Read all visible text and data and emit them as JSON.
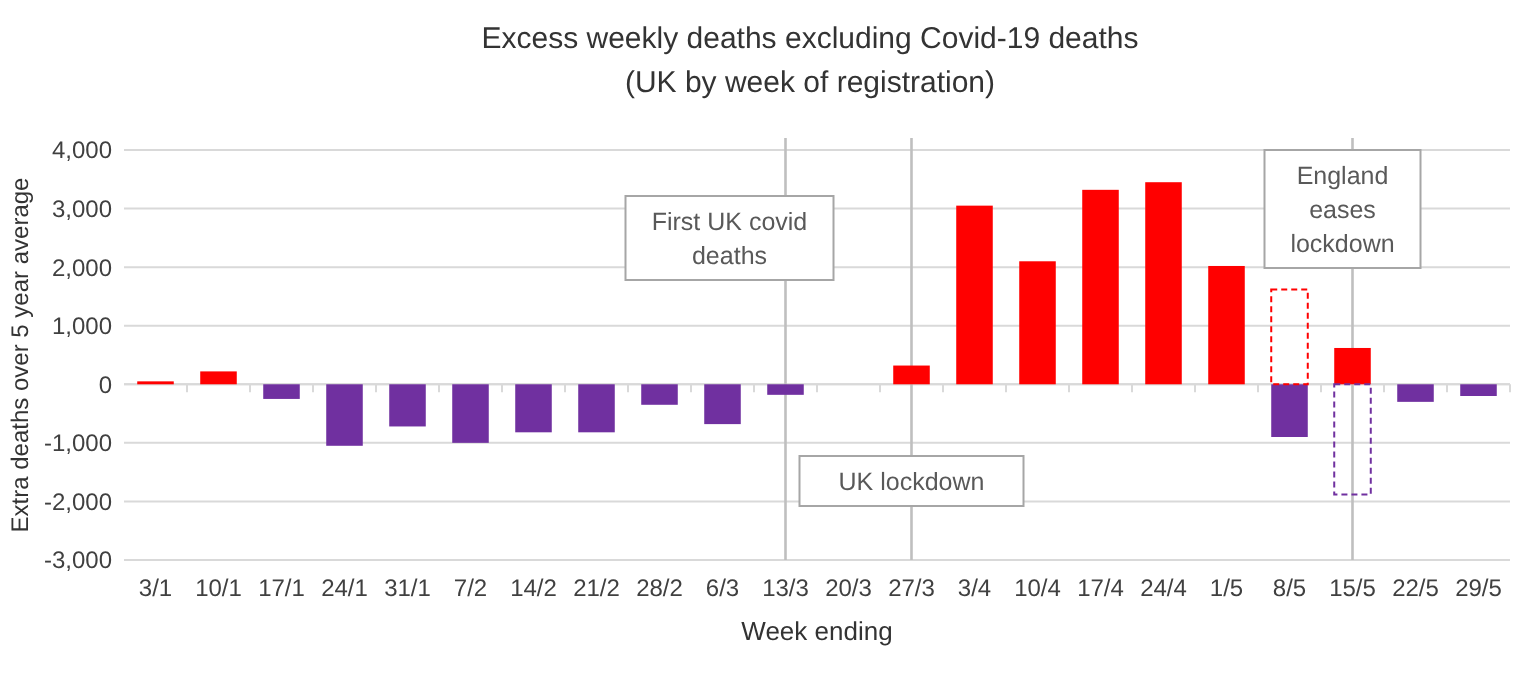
{
  "chart_data": {
    "type": "bar",
    "title": "Excess weekly deaths excluding Covid-19 deaths",
    "subtitle": "(UK by week of registration)",
    "xlabel": "Week ending",
    "ylabel": "Extra deaths over 5 year average",
    "categories": [
      "3/1",
      "10/1",
      "17/1",
      "24/1",
      "31/1",
      "7/2",
      "14/2",
      "21/2",
      "28/2",
      "6/3",
      "13/3",
      "20/3",
      "27/3",
      "3/4",
      "10/4",
      "17/4",
      "24/4",
      "1/5",
      "8/5",
      "15/5",
      "22/5",
      "29/5"
    ],
    "stacked": true,
    "series": [
      {
        "colors": [
          "#ff0000",
          "#ff0000",
          "#7030a0",
          "#7030a0",
          "#7030a0",
          "#7030a0",
          "#7030a0",
          "#7030a0",
          "#7030a0",
          "#7030a0",
          "#7030a0",
          "#ff0000",
          "#ff0000",
          "#ff0000",
          "#ff0000",
          "#ff0000",
          "#ff0000",
          "#ff0000",
          "#7030a0",
          "#ff0000",
          "#7030a0",
          "#7030a0"
        ],
        "values": [
          50,
          220,
          -250,
          -1050,
          -720,
          -1000,
          -820,
          -820,
          -350,
          -680,
          -180,
          null,
          320,
          3050,
          2100,
          3320,
          3450,
          2020,
          -900,
          620,
          -300,
          -200
        ]
      },
      {
        "line_style": "dashed",
        "colors": [
          "#ff0000",
          "#ff0000",
          "#ff0000",
          "#ff0000",
          "#ff0000",
          "#ff0000",
          "#ff0000",
          "#ff0000",
          "#ff0000",
          "#ff0000",
          "#ff0000",
          "#ff0000",
          "#ff0000",
          "#ff0000",
          "#ff0000",
          "#ff0000",
          "#ff0000",
          "#ff0000",
          "#ff0000",
          "#7030a0",
          "#7030a0",
          "#7030a0"
        ],
        "values": [
          null,
          null,
          null,
          null,
          null,
          null,
          null,
          null,
          null,
          null,
          null,
          null,
          null,
          null,
          null,
          null,
          null,
          null,
          1620,
          -1880,
          null,
          null
        ]
      }
    ],
    "ylim": [
      -3000,
      4000
    ],
    "yticks": [
      {
        "value": -3000,
        "label": "-3,000"
      },
      {
        "value": -2000,
        "label": "-2,000"
      },
      {
        "value": -1000,
        "label": "-1,000"
      },
      0,
      {
        "value": 1000,
        "label": "1,000"
      },
      {
        "value": 2000,
        "label": "2,000"
      },
      {
        "value": 3000,
        "label": "3,000"
      },
      {
        "value": 4000,
        "label": "4,000"
      }
    ],
    "grid": "y",
    "ref_lines": [
      {
        "axis": "x",
        "value": "13/3",
        "label": "First UK covid deaths",
        "color": "#bfbfbf"
      },
      {
        "axis": "x",
        "value": "27/3",
        "label": "UK lockdown",
        "color": "#bfbfbf"
      },
      {
        "axis": "x",
        "value": "15/5",
        "label": "England eases lockdown",
        "color": "#bfbfbf"
      }
    ]
  }
}
